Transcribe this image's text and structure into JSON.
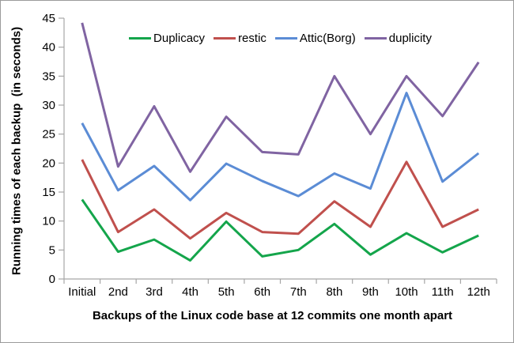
{
  "chart": {
    "y_axis_title": "Running times of each backup  (in seconds)",
    "x_axis_title": "Backups of the Linux code base at 12 commits one month apart"
  },
  "chart_data": {
    "type": "line",
    "title": "",
    "xlabel": "Backups of the Linux code base at 12 commits one month apart",
    "ylabel": "Running times of each backup (in seconds)",
    "categories": [
      "Initial",
      "2nd",
      "3rd",
      "4th",
      "5th",
      "6th",
      "7th",
      "8th",
      "9th",
      "10th",
      "11th",
      "12th"
    ],
    "ylim": [
      0,
      45
    ],
    "y_ticks": [
      0,
      5,
      10,
      15,
      20,
      25,
      30,
      35,
      40,
      45
    ],
    "grid": false,
    "legend_position": "top",
    "axis_color": "#a6a6a6",
    "text_color": "#000000",
    "series": [
      {
        "name": "Duplicacy",
        "color": "#14a54b",
        "values": [
          13.7,
          4.7,
          6.8,
          3.2,
          9.9,
          3.9,
          5.0,
          9.5,
          4.2,
          7.9,
          4.6,
          7.5
        ]
      },
      {
        "name": "restic",
        "color": "#c0504d",
        "values": [
          20.6,
          8.1,
          12.0,
          7.0,
          11.4,
          8.1,
          7.8,
          13.4,
          9.0,
          20.2,
          9.0,
          12.0
        ]
      },
      {
        "name": "Attic(Borg)",
        "color": "#5b8cd5",
        "values": [
          26.9,
          15.3,
          19.5,
          13.6,
          19.9,
          16.9,
          14.3,
          18.2,
          15.6,
          32.1,
          16.8,
          21.7
        ]
      },
      {
        "name": "duplicity",
        "color": "#8064a2",
        "values": [
          44.2,
          19.4,
          29.8,
          18.5,
          28.0,
          21.9,
          21.5,
          35.0,
          25.0,
          35.0,
          28.1,
          37.4
        ]
      }
    ]
  }
}
